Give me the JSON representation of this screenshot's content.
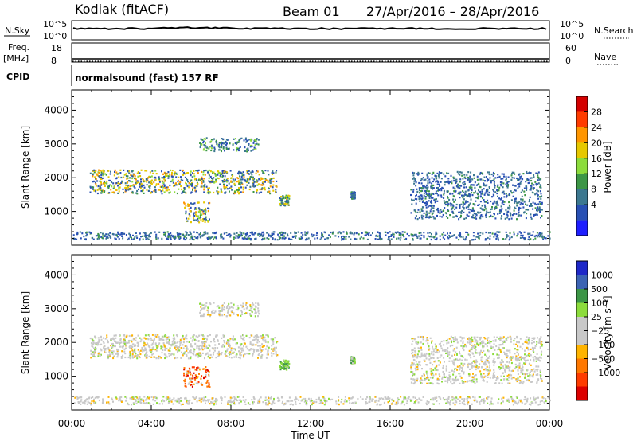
{
  "header": {
    "station": "Kodiak (fitACF)",
    "beam": "Beam 01",
    "date_range": "27/Apr/2016 – 28/Apr/2016"
  },
  "strips": {
    "noise": {
      "left_label": "N.Sky",
      "right_label": "N.Search",
      "left_ticks": [
        "10^5",
        "10^0"
      ],
      "right_ticks": [
        "10^5",
        "10^0"
      ]
    },
    "freq": {
      "left_label_1": "Freq.",
      "left_label_2": "[MHz]",
      "right_label": "Nave",
      "left_ticks": [
        "18",
        "8"
      ],
      "right_ticks": [
        "60",
        "0"
      ]
    },
    "cpid": {
      "label": "CPID",
      "value": "normalsound (fast) 157 RF"
    }
  },
  "chart_data": [
    {
      "type": "heatmap",
      "name": "power",
      "xlabel": "",
      "ylabel": "Slant Range [km]",
      "x_range_hours": [
        0,
        24
      ],
      "ylim": [
        0,
        4600
      ],
      "yticks": [
        "1000",
        "2000",
        "3000",
        "4000"
      ],
      "colorbar": {
        "label": "Power [dB]",
        "ticks": [
          "28",
          "24",
          "20",
          "16",
          "12",
          "8",
          "4"
        ],
        "colors": [
          "#d40000",
          "#ff3c00",
          "#ff9600",
          "#e6c800",
          "#8cdc3c",
          "#3c9646",
          "#3c7890",
          "#2850b4",
          "#1e1eff"
        ]
      },
      "echo_regions": [
        {
          "t_start": 6.4,
          "t_end": 9.4,
          "r_low": 2800,
          "r_high": 3200,
          "level": "low-mid"
        },
        {
          "t_start": 0.9,
          "t_end": 10.3,
          "r_low": 1550,
          "r_high": 2250,
          "level": "mid-high"
        },
        {
          "t_start": 5.6,
          "t_end": 6.9,
          "r_low": 700,
          "r_high": 1300,
          "level": "mid-high"
        },
        {
          "t_start": 10.4,
          "t_end": 10.9,
          "r_low": 1200,
          "r_high": 1500,
          "level": "mid"
        },
        {
          "t_start": 14.0,
          "t_end": 14.2,
          "r_low": 1400,
          "r_high": 1600,
          "level": "low"
        },
        {
          "t_start": 17.0,
          "t_end": 23.6,
          "r_low": 800,
          "r_high": 2200,
          "level": "low"
        },
        {
          "t_start": 0.0,
          "t_end": 24.0,
          "r_low": 180,
          "r_high": 420,
          "level": "low"
        }
      ]
    },
    {
      "type": "heatmap",
      "name": "velocity",
      "xlabel": "Time UT",
      "ylabel": "Slant Range [km]",
      "x_range_hours": [
        0,
        24
      ],
      "xticks": [
        "00:00",
        "04:00",
        "08:00",
        "12:00",
        "16:00",
        "20:00",
        "00:00"
      ],
      "ylim": [
        0,
        4600
      ],
      "yticks": [
        "1000",
        "2000",
        "3000",
        "4000"
      ],
      "colorbar": {
        "label": "Velocity [m s⁻¹]",
        "ticks": [
          "1000",
          "500",
          "100",
          "25",
          "−25",
          "−100",
          "−500",
          "−1000"
        ],
        "colors": [
          "#1e28c8",
          "#3c64b4",
          "#3c9646",
          "#8cdc3c",
          "#c8c8c8",
          "#c8c8c8",
          "#ffb400",
          "#ff7800",
          "#ff3c00",
          "#dc0000"
        ]
      },
      "echo_regions": [
        {
          "t_start": 6.4,
          "t_end": 9.4,
          "r_low": 2800,
          "r_high": 3200,
          "level": "near-zero"
        },
        {
          "t_start": 0.9,
          "t_end": 10.3,
          "r_low": 1550,
          "r_high": 2250,
          "level": "near-zero"
        },
        {
          "t_start": 5.6,
          "t_end": 6.9,
          "r_low": 700,
          "r_high": 1300,
          "level": "negative"
        },
        {
          "t_start": 10.4,
          "t_end": 10.9,
          "r_low": 1200,
          "r_high": 1500,
          "level": "positive"
        },
        {
          "t_start": 14.0,
          "t_end": 14.2,
          "r_low": 1400,
          "r_high": 1600,
          "level": "positive"
        },
        {
          "t_start": 17.0,
          "t_end": 23.6,
          "r_low": 800,
          "r_high": 2200,
          "level": "near-zero"
        },
        {
          "t_start": 0.0,
          "t_end": 24.0,
          "r_low": 180,
          "r_high": 420,
          "level": "near-zero"
        }
      ]
    }
  ]
}
